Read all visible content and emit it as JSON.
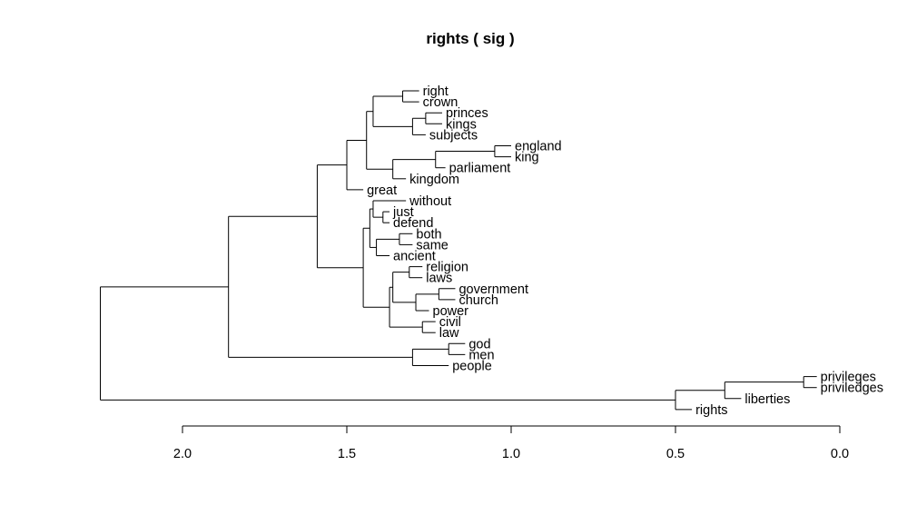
{
  "chart_data": {
    "type": "dendrogram",
    "title": "rights  ( sig )",
    "orientation": "horizontal",
    "xlim": [
      2.0,
      0.0
    ],
    "ticks": [
      2.0,
      1.5,
      1.0,
      0.5,
      0.0
    ],
    "tick_labels": [
      "2.0",
      "1.5",
      "1.0",
      "0.5",
      "0.0"
    ],
    "leaves": [
      {
        "label": "right",
        "height": 1.28
      },
      {
        "label": "crown",
        "height": 1.28
      },
      {
        "label": "princes",
        "height": 1.21
      },
      {
        "label": "kings",
        "height": 1.21
      },
      {
        "label": "subjects",
        "height": 1.26
      },
      {
        "label": "england",
        "height": 1.0
      },
      {
        "label": "king",
        "height": 1.0
      },
      {
        "label": "parliament",
        "height": 1.2
      },
      {
        "label": "kingdom",
        "height": 1.32
      },
      {
        "label": "great",
        "height": 1.45
      },
      {
        "label": "without",
        "height": 1.32
      },
      {
        "label": "just",
        "height": 1.37
      },
      {
        "label": "defend",
        "height": 1.37
      },
      {
        "label": "both",
        "height": 1.3
      },
      {
        "label": "same",
        "height": 1.3
      },
      {
        "label": "ancient",
        "height": 1.37
      },
      {
        "label": "religion",
        "height": 1.27
      },
      {
        "label": "laws",
        "height": 1.27
      },
      {
        "label": "government",
        "height": 1.17
      },
      {
        "label": "church",
        "height": 1.17
      },
      {
        "label": "power",
        "height": 1.25
      },
      {
        "label": "civil",
        "height": 1.23
      },
      {
        "label": "law",
        "height": 1.23
      },
      {
        "label": "god",
        "height": 1.14
      },
      {
        "label": "men",
        "height": 1.14
      },
      {
        "label": "people",
        "height": 1.19
      },
      {
        "label": "privileges",
        "height": 0.07
      },
      {
        "label": "priviledges",
        "height": 0.07
      },
      {
        "label": "liberties",
        "height": 0.3
      },
      {
        "label": "rights",
        "height": 0.45
      }
    ],
    "merges": [
      {
        "left": "L0",
        "right": "L1",
        "height": 1.33
      },
      {
        "left": "L2",
        "right": "L3",
        "height": 1.26
      },
      {
        "left": "M1",
        "right": "L4",
        "height": 1.3
      },
      {
        "left": "M0",
        "right": "M2",
        "height": 1.42
      },
      {
        "left": "L5",
        "right": "L6",
        "height": 1.05
      },
      {
        "left": "M4",
        "right": "L7",
        "height": 1.23
      },
      {
        "left": "M5",
        "right": "L8",
        "height": 1.36
      },
      {
        "left": "M3",
        "right": "M6",
        "height": 1.44
      },
      {
        "left": "M7",
        "right": "L9",
        "height": 1.5
      },
      {
        "left": "L11",
        "right": "L12",
        "height": 1.39
      },
      {
        "left": "L10",
        "right": "M9",
        "height": 1.42
      },
      {
        "left": "L13",
        "right": "L14",
        "height": 1.34
      },
      {
        "left": "M11",
        "right": "L15",
        "height": 1.41
      },
      {
        "left": "M10",
        "right": "M12",
        "height": 1.43
      },
      {
        "left": "L16",
        "right": "L17",
        "height": 1.31
      },
      {
        "left": "L18",
        "right": "L19",
        "height": 1.22
      },
      {
        "left": "M15",
        "right": "L20",
        "height": 1.29
      },
      {
        "left": "L21",
        "right": "L22",
        "height": 1.27
      },
      {
        "left": "M14",
        "right": "M16",
        "height": 1.36
      },
      {
        "left": "M18",
        "right": "M17",
        "height": 1.37
      },
      {
        "left": "M13",
        "right": "M19",
        "height": 1.45
      },
      {
        "left": "M8",
        "right": "M20",
        "height": 1.59
      },
      {
        "left": "L23",
        "right": "L24",
        "height": 1.19
      },
      {
        "left": "M22",
        "right": "L25",
        "height": 1.3
      },
      {
        "left": "M21",
        "right": "M23",
        "height": 1.86
      },
      {
        "left": "L26",
        "right": "L27",
        "height": 0.11
      },
      {
        "left": "M25",
        "right": "L28",
        "height": 0.35
      },
      {
        "left": "M26",
        "right": "L29",
        "height": 0.5
      },
      {
        "left": "M24",
        "right": "M27",
        "height": 2.25
      }
    ]
  }
}
